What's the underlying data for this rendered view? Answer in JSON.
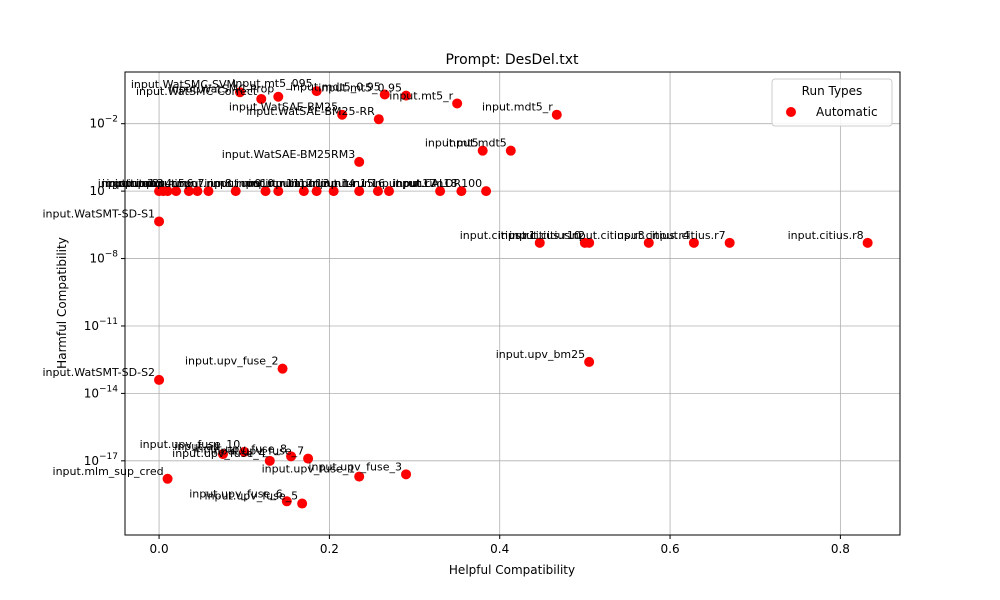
{
  "chart_data": {
    "type": "scatter",
    "title": "Prompt: DesDel.txt",
    "xlabel": "Helpful Compatibility",
    "ylabel": "Harmful Compatibility",
    "xlim": [
      -0.04,
      0.87
    ],
    "ylim_log10": [
      -20.3,
      0.3
    ],
    "y_scale": "log",
    "grid": true,
    "x_ticks": [
      {
        "value": 0.0,
        "label": "0.0"
      },
      {
        "value": 0.2,
        "label": "0.2"
      },
      {
        "value": 0.4,
        "label": "0.4"
      },
      {
        "value": 0.6,
        "label": "0.6"
      },
      {
        "value": 0.8,
        "label": "0.8"
      }
    ],
    "y_ticks": [
      {
        "exp": -2,
        "label_base": "10",
        "label_exp": "−2"
      },
      {
        "exp": -5,
        "label_base": "10",
        "label_exp": "−5"
      },
      {
        "exp": -8,
        "label_base": "10",
        "label_exp": "−8"
      },
      {
        "exp": -11,
        "label_base": "10",
        "label_exp": "−11"
      },
      {
        "exp": -14,
        "label_base": "10",
        "label_exp": "−14"
      },
      {
        "exp": -17,
        "label_base": "10",
        "label_exp": "−17"
      }
    ],
    "legend": {
      "title": "Run Types",
      "placement": "top-right",
      "entries": [
        {
          "name": "Automatic",
          "color": "#ff0000"
        }
      ]
    },
    "series": [
      {
        "name": "Automatic",
        "color": "#ff0000",
        "points": [
          {
            "x": 0.12,
            "y_exp": -0.9,
            "label": "input.WatSMC-Correct"
          },
          {
            "x": 0.095,
            "y_exp": -0.6,
            "label": "input.WatSMC-SVM"
          },
          {
            "x": 0.14,
            "y_exp": -0.8,
            "label": "input.WatSMC-Prop"
          },
          {
            "x": 0.185,
            "y_exp": -0.55,
            "label": "input.mt5_095"
          },
          {
            "x": 0.265,
            "y_exp": -0.7,
            "label": "input.mdt5_0.95"
          },
          {
            "x": 0.29,
            "y_exp": -0.75,
            "label": "input.mt5_0.95"
          },
          {
            "x": 0.35,
            "y_exp": -1.1,
            "label": "input.mt5_r"
          },
          {
            "x": 0.215,
            "y_exp": -1.6,
            "label": "input.WatSAE-BM25"
          },
          {
            "x": 0.258,
            "y_exp": -1.8,
            "label": "input.WatSAE-BM25-RR"
          },
          {
            "x": 0.467,
            "y_exp": -1.6,
            "label": "input.mdt5_r"
          },
          {
            "x": 0.38,
            "y_exp": -3.2,
            "label": "input.mt5"
          },
          {
            "x": 0.413,
            "y_exp": -3.2,
            "label": "input.mdt5"
          },
          {
            "x": 0.235,
            "y_exp": -3.7,
            "label": "input.WatSAE-BM25RM3"
          },
          {
            "x": 0.0,
            "y_exp": -5.0,
            "label": "input.run1"
          },
          {
            "x": 0.005,
            "y_exp": -5.0,
            "label": "input.run2"
          },
          {
            "x": 0.01,
            "y_exp": -5.0,
            "label": "input.run3"
          },
          {
            "x": 0.02,
            "y_exp": -5.0,
            "label": "input.run4"
          },
          {
            "x": 0.035,
            "y_exp": -5.0,
            "label": "input.run5"
          },
          {
            "x": 0.045,
            "y_exp": -5.0,
            "label": "input.run6"
          },
          {
            "x": 0.058,
            "y_exp": -5.0,
            "label": "input.run7"
          },
          {
            "x": 0.09,
            "y_exp": -5.0,
            "label": "input.run8"
          },
          {
            "x": 0.125,
            "y_exp": -5.0,
            "label": "input.run9"
          },
          {
            "x": 0.14,
            "y_exp": -5.0,
            "label": "input.run10"
          },
          {
            "x": 0.17,
            "y_exp": -5.0,
            "label": "input.run11"
          },
          {
            "x": 0.185,
            "y_exp": -5.0,
            "label": "input.run12"
          },
          {
            "x": 0.205,
            "y_exp": -5.0,
            "label": "input.run13"
          },
          {
            "x": 0.235,
            "y_exp": -5.0,
            "label": "input.run14"
          },
          {
            "x": 0.257,
            "y_exp": -5.0,
            "label": "input.run15"
          },
          {
            "x": 0.27,
            "y_exp": -5.0,
            "label": "input.run16"
          },
          {
            "x": 0.33,
            "y_exp": -5.0,
            "label": "input.run17"
          },
          {
            "x": 0.355,
            "y_exp": -5.0,
            "label": "input.run18"
          },
          {
            "x": 0.384,
            "y_exp": -5.0,
            "label": "input.CALOR100"
          },
          {
            "x": 0.0,
            "y_exp": -6.35,
            "label": "input.WatSMT-SD-S1"
          },
          {
            "x": 0.447,
            "y_exp": -7.3,
            "label": "input.citius.r1"
          },
          {
            "x": 0.5,
            "y_exp": -7.3,
            "label": "input.citius.r10"
          },
          {
            "x": 0.505,
            "y_exp": -7.3,
            "label": "input.citius.r2"
          },
          {
            "x": 0.575,
            "y_exp": -7.3,
            "label": "input.citius.r3"
          },
          {
            "x": 0.628,
            "y_exp": -7.3,
            "label": "input.citius.r4"
          },
          {
            "x": 0.67,
            "y_exp": -7.3,
            "label": "input.citius.r7"
          },
          {
            "x": 0.832,
            "y_exp": -7.3,
            "label": "input.citius.r8"
          },
          {
            "x": 0.505,
            "y_exp": -12.6,
            "label": "input.upv_bm25"
          },
          {
            "x": 0.145,
            "y_exp": -12.9,
            "label": "input.upv_fuse_2"
          },
          {
            "x": 0.0,
            "y_exp": -13.4,
            "label": "input.WatSMT-SD-S2"
          },
          {
            "x": 0.1,
            "y_exp": -16.6,
            "label": "input.upv_fuse_10"
          },
          {
            "x": 0.155,
            "y_exp": -16.8,
            "label": "input.upv_fuse_8"
          },
          {
            "x": 0.175,
            "y_exp": -16.9,
            "label": "input.upv_fuse_7"
          },
          {
            "x": 0.075,
            "y_exp": -16.7,
            "label": "input.all"
          },
          {
            "x": 0.13,
            "y_exp": -17.0,
            "label": "input.upv_fuse_4"
          },
          {
            "x": 0.235,
            "y_exp": -17.7,
            "label": "input.upv_fuse_1"
          },
          {
            "x": 0.29,
            "y_exp": -17.6,
            "label": "input.upv_fuse_3"
          },
          {
            "x": 0.01,
            "y_exp": -17.8,
            "label": "input.mlm_sup_cred"
          },
          {
            "x": 0.15,
            "y_exp": -18.8,
            "label": "input.upv_fuse_6"
          },
          {
            "x": 0.168,
            "y_exp": -18.9,
            "label": "input.upv_fuse_5"
          }
        ]
      }
    ]
  }
}
